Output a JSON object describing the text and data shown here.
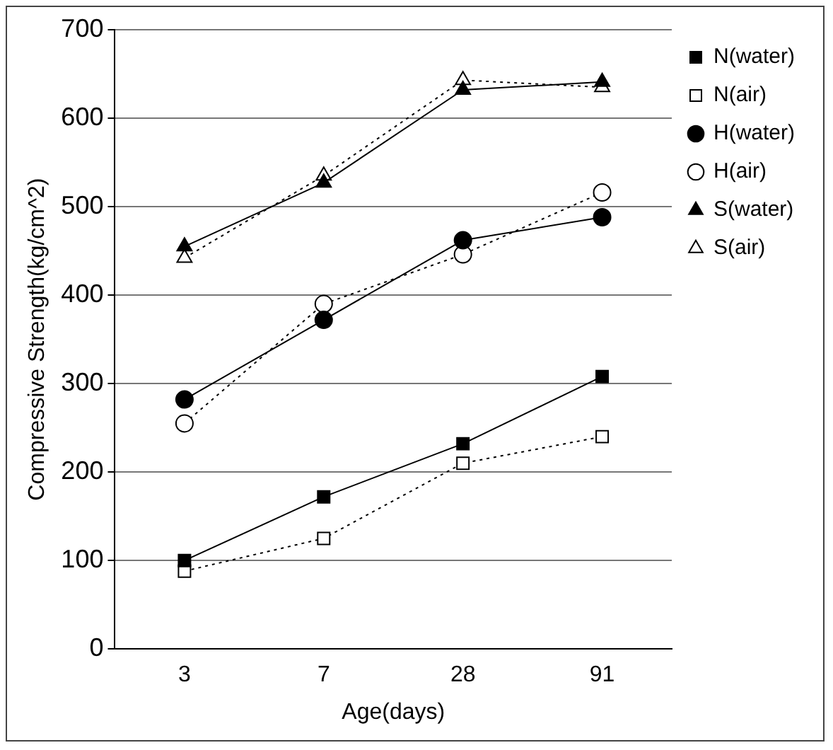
{
  "chart_data": {
    "type": "line",
    "xlabel": "Age(days)",
    "ylabel": "Compressive Strength(kg/cm^2)",
    "categories": [
      "3",
      "7",
      "28",
      "91"
    ],
    "ylim": [
      0,
      700
    ],
    "yticks": [
      0,
      100,
      200,
      300,
      400,
      500,
      600,
      700
    ],
    "grid": "y",
    "legend": "right",
    "series": [
      {
        "name": "N(water)",
        "color": "#000000",
        "marker": "square",
        "line_style": "solid",
        "values": [
          100,
          172,
          232,
          308
        ]
      },
      {
        "name": "N(air)",
        "color": "#000000",
        "marker": "square",
        "line_style": "dotted",
        "values": [
          88,
          125,
          210,
          240
        ]
      },
      {
        "name": "H(water)",
        "color": "#000000",
        "marker": "circle",
        "line_style": "solid",
        "values": [
          282,
          372,
          462,
          488
        ]
      },
      {
        "name": "H(air)",
        "color": "#000000",
        "marker": "circle",
        "line_style": "dotted",
        "values": [
          255,
          390,
          446,
          516
        ]
      },
      {
        "name": "S(water)",
        "color": "#000000",
        "marker": "triangle",
        "line_style": "solid",
        "values": [
          455,
          527,
          632,
          641
        ]
      },
      {
        "name": "S(air)",
        "color": "#000000",
        "marker": "triangle",
        "line_style": "dotted",
        "values": [
          442,
          535,
          643,
          635
        ]
      }
    ]
  }
}
